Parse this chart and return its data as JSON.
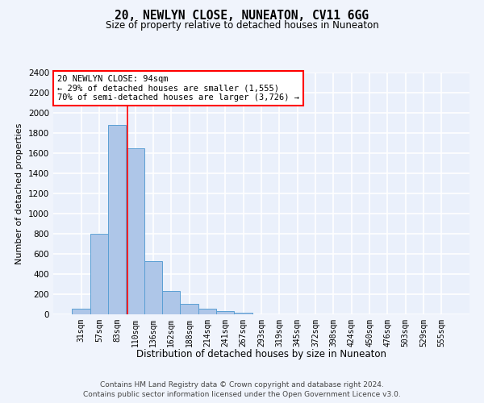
{
  "title": "20, NEWLYN CLOSE, NUNEATON, CV11 6GG",
  "subtitle": "Size of property relative to detached houses in Nuneaton",
  "xlabel": "Distribution of detached houses by size in Nuneaton",
  "ylabel": "Number of detached properties",
  "footnote1": "Contains HM Land Registry data © Crown copyright and database right 2024.",
  "footnote2": "Contains public sector information licensed under the Open Government Licence v3.0.",
  "annotation_line1": "20 NEWLYN CLOSE: 94sqm",
  "annotation_line2": "← 29% of detached houses are smaller (1,555)",
  "annotation_line3": "70% of semi-detached houses are larger (3,726) →",
  "bar_labels": [
    "31sqm",
    "57sqm",
    "83sqm",
    "110sqm",
    "136sqm",
    "162sqm",
    "188sqm",
    "214sqm",
    "241sqm",
    "267sqm",
    "293sqm",
    "319sqm",
    "345sqm",
    "372sqm",
    "398sqm",
    "424sqm",
    "450sqm",
    "476sqm",
    "503sqm",
    "529sqm",
    "555sqm"
  ],
  "bar_values": [
    55,
    800,
    1880,
    1650,
    530,
    235,
    105,
    55,
    30,
    20,
    0,
    0,
    0,
    0,
    0,
    0,
    0,
    0,
    0,
    0,
    0
  ],
  "bar_color": "#aec6e8",
  "bar_edge_color": "#5a9fd4",
  "red_line_x": 2.59,
  "ylim": [
    0,
    2400
  ],
  "yticks": [
    0,
    200,
    400,
    600,
    800,
    1000,
    1200,
    1400,
    1600,
    1800,
    2000,
    2200,
    2400
  ],
  "fig_bg_color": "#f0f4fc",
  "ax_bg_color": "#eaf0fb",
  "grid_color": "#ffffff"
}
